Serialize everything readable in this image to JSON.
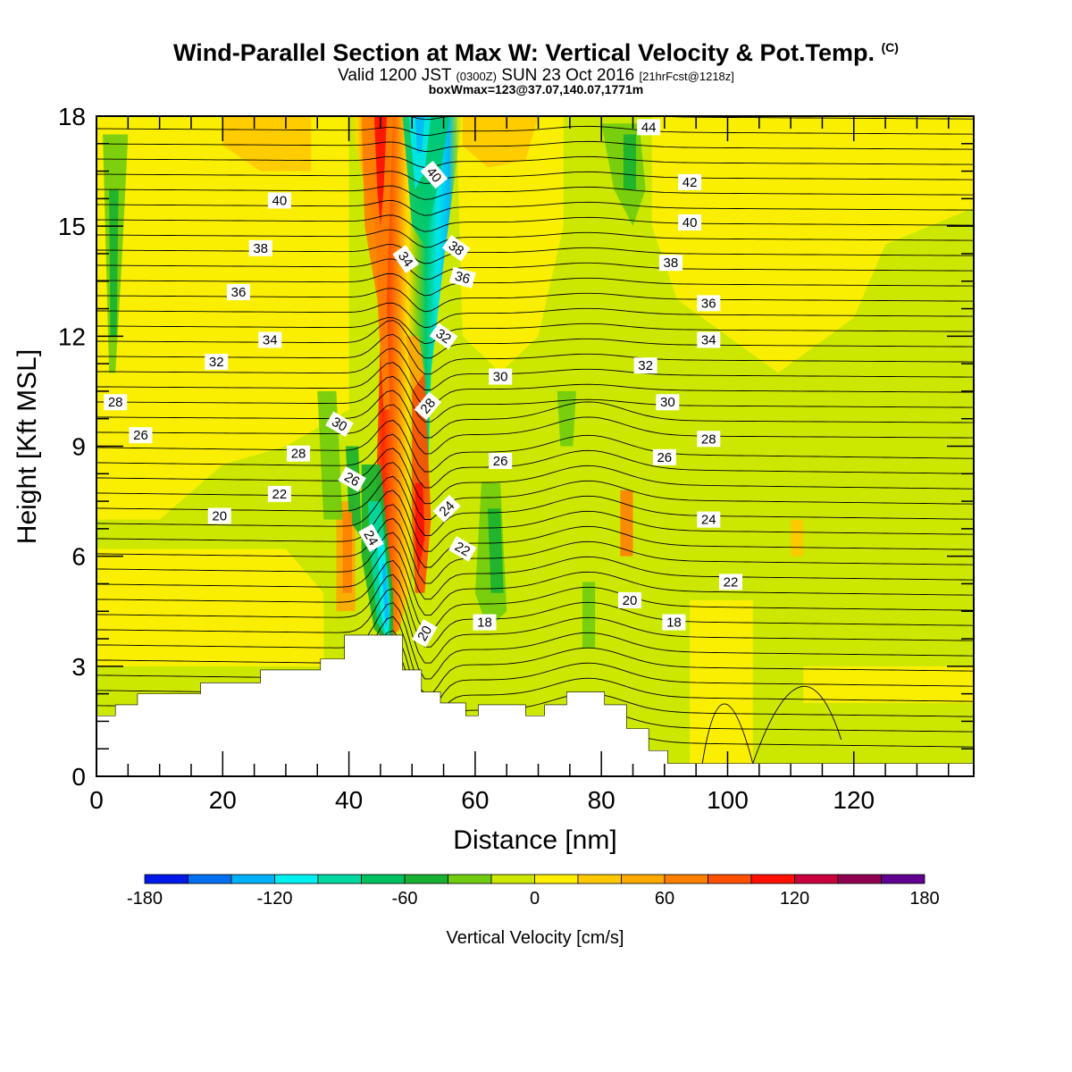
{
  "title": "Wind-Parallel Section at Max W: Vertical Velocity & Pot.Temp.",
  "title_mark": "(C)",
  "subtitle_main": "Valid 1200 JST",
  "subtitle_z": "(0300Z)",
  "subtitle_date": "SUN 23 Oct 2016",
  "subtitle_fcst": "[21hrFcst@1218z]",
  "subtitle2": "boxWmax=123@37.07,140.07,1771m",
  "chart_data": {
    "type": "heatmap",
    "xlabel": "Distance [nm]",
    "ylabel": "Height [Kft MSL]",
    "xlim": [
      0,
      139
    ],
    "ylim": [
      0,
      18
    ],
    "x_ticks": [
      "0",
      "20",
      "40",
      "60",
      "80",
      "100",
      "120"
    ],
    "y_ticks": [
      "0",
      "3",
      "6",
      "9",
      "12",
      "15",
      "18"
    ],
    "colorbar": {
      "title": "Vertical Velocity [cm/s]",
      "ticks": [
        "-180",
        "-120",
        "-60",
        "0",
        "60",
        "120",
        "180"
      ],
      "bins": [
        {
          "from": -180,
          "to": -160,
          "color": "#0018e8"
        },
        {
          "from": -160,
          "to": -140,
          "color": "#0070f0"
        },
        {
          "from": -140,
          "to": -120,
          "color": "#00b0f8"
        },
        {
          "from": -120,
          "to": -100,
          "color": "#00f0f0"
        },
        {
          "from": -100,
          "to": -80,
          "color": "#00d8a0"
        },
        {
          "from": -80,
          "to": -60,
          "color": "#00c060"
        },
        {
          "from": -60,
          "to": -40,
          "color": "#18b030"
        },
        {
          "from": -40,
          "to": -20,
          "color": "#70cc10"
        },
        {
          "from": -20,
          "to": 0,
          "color": "#cce800"
        },
        {
          "from": 0,
          "to": 20,
          "color": "#fff000"
        },
        {
          "from": 20,
          "to": 40,
          "color": "#ffc800"
        },
        {
          "from": 40,
          "to": 60,
          "color": "#ffa800"
        },
        {
          "from": 60,
          "to": 80,
          "color": "#ff8000"
        },
        {
          "from": 80,
          "to": 100,
          "color": "#ff5000"
        },
        {
          "from": 100,
          "to": 120,
          "color": "#ff1000"
        },
        {
          "from": 120,
          "to": 140,
          "color": "#c8003c"
        },
        {
          "from": 140,
          "to": 160,
          "color": "#900050"
        },
        {
          "from": 160,
          "to": 180,
          "color": "#600090"
        }
      ]
    },
    "terrain_kft": [
      [
        0,
        1.65
      ],
      [
        3,
        1.95
      ],
      [
        6.5,
        2.25
      ],
      [
        16.5,
        2.55
      ],
      [
        26,
        2.9
      ],
      [
        35.5,
        3.2
      ],
      [
        39.3,
        3.85
      ],
      [
        48.5,
        2.9
      ],
      [
        51.5,
        2.3
      ],
      [
        54.5,
        2.0
      ],
      [
        58.5,
        1.65
      ],
      [
        60.5,
        1.95
      ],
      [
        68,
        1.65
      ],
      [
        71,
        1.95
      ],
      [
        74.5,
        2.3
      ],
      [
        80.5,
        1.95
      ],
      [
        84,
        1.3
      ],
      [
        87.5,
        0.7
      ],
      [
        90.5,
        0.35
      ],
      [
        139,
        0.35
      ]
    ],
    "isentrope_labels": [
      {
        "text": "44",
        "x": 87.5,
        "y": 17.7
      },
      {
        "text": "42",
        "x": 94,
        "y": 16.2
      },
      {
        "text": "40",
        "x": 94,
        "y": 15.1
      },
      {
        "text": "40",
        "x": 29,
        "y": 15.7,
        "rot": 0
      },
      {
        "text": "40",
        "x": 53.5,
        "y": 16.4,
        "rot": 50
      },
      {
        "text": "38",
        "x": 26,
        "y": 14.4
      },
      {
        "text": "38",
        "x": 91,
        "y": 14.0
      },
      {
        "text": "38",
        "x": 57,
        "y": 14.4,
        "rot": 35
      },
      {
        "text": "34",
        "x": 49,
        "y": 14.1,
        "rot": 55
      },
      {
        "text": "36",
        "x": 22.5,
        "y": 13.2
      },
      {
        "text": "36",
        "x": 58,
        "y": 13.6,
        "rot": 15
      },
      {
        "text": "36",
        "x": 97,
        "y": 12.9
      },
      {
        "text": "34",
        "x": 27.5,
        "y": 11.9
      },
      {
        "text": "32",
        "x": 55,
        "y": 12.0,
        "rot": 35
      },
      {
        "text": "34",
        "x": 97,
        "y": 11.9
      },
      {
        "text": "32",
        "x": 19,
        "y": 11.3
      },
      {
        "text": "32",
        "x": 87,
        "y": 11.2
      },
      {
        "text": "30",
        "x": 64,
        "y": 10.9
      },
      {
        "text": "30",
        "x": 90.5,
        "y": 10.2
      },
      {
        "text": "28",
        "x": 3,
        "y": 10.2
      },
      {
        "text": "28",
        "x": 52.5,
        "y": 10.1,
        "rot": -50
      },
      {
        "text": "30",
        "x": 38.5,
        "y": 9.6,
        "rot": 30
      },
      {
        "text": "26",
        "x": 7,
        "y": 9.3
      },
      {
        "text": "28",
        "x": 97,
        "y": 9.2
      },
      {
        "text": "28",
        "x": 32,
        "y": 8.8
      },
      {
        "text": "26",
        "x": 64,
        "y": 8.6
      },
      {
        "text": "26",
        "x": 90,
        "y": 8.7
      },
      {
        "text": "26",
        "x": 40.5,
        "y": 8.1,
        "rot": 30
      },
      {
        "text": "22",
        "x": 29,
        "y": 7.7
      },
      {
        "text": "24",
        "x": 55.5,
        "y": 7.3,
        "rot": -45
      },
      {
        "text": "20",
        "x": 19.5,
        "y": 7.1
      },
      {
        "text": "24",
        "x": 97,
        "y": 7.0
      },
      {
        "text": "24",
        "x": 43.5,
        "y": 6.5,
        "rot": 60
      },
      {
        "text": "22",
        "x": 58,
        "y": 6.2,
        "rot": 30
      },
      {
        "text": "22",
        "x": 100.5,
        "y": 5.3
      },
      {
        "text": "20",
        "x": 84.5,
        "y": 4.8
      },
      {
        "text": "18",
        "x": 61.5,
        "y": 4.2
      },
      {
        "text": "18",
        "x": 91.5,
        "y": 4.2
      },
      {
        "text": "20",
        "x": 52,
        "y": 3.9,
        "rot": -60
      }
    ]
  }
}
